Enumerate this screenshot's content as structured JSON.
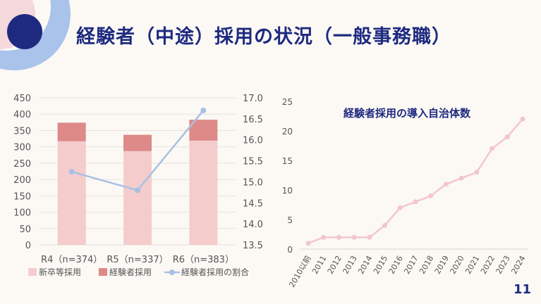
{
  "title": "経験者（中途）採用の状況（一般事務職）",
  "page_number": "11",
  "colors": {
    "navy": "#1e2a80",
    "light_pink": "#f4cccc",
    "dark_pink": "#dd8a88",
    "line_blue": "#a8c0e4",
    "line_pink": "#f3c6cc"
  },
  "chart_data": [
    {
      "type": "bar",
      "stacked": true,
      "categories": [
        "R4（n=374）",
        "R5（n=337）",
        "R6（n=383）"
      ],
      "series": [
        {
          "name": "新卒等採用",
          "values": [
            317,
            287,
            319
          ],
          "axis": "left"
        },
        {
          "name": "経験者採用",
          "values": [
            57,
            50,
            64
          ],
          "axis": "left"
        },
        {
          "name": "経験者採用の割合",
          "type": "line",
          "values": [
            15.24,
            14.8,
            16.7
          ],
          "axis": "right"
        }
      ],
      "ylim": [
        0,
        450
      ],
      "yticks": [
        "0",
        "50",
        "100",
        "150",
        "200",
        "250",
        "300",
        "350",
        "400",
        "450"
      ],
      "y2lim": [
        13.5,
        17.0
      ],
      "y2ticks": [
        "13.5",
        "14.0",
        "14.5",
        "15.0",
        "15.5",
        "16.0",
        "16.5",
        "17.0"
      ],
      "legend_position": "bottom",
      "grid": true
    },
    {
      "type": "line",
      "title": "経験者採用の導入自治体数",
      "categories": [
        "2010以前",
        "2011",
        "2012",
        "2013",
        "2014",
        "2015",
        "2016",
        "2017",
        "2018",
        "2019",
        "2020",
        "2021",
        "2022",
        "2023",
        "2024"
      ],
      "values": [
        1,
        2,
        2,
        2,
        2,
        4,
        7,
        8,
        9,
        11,
        12,
        13,
        17,
        19,
        22
      ],
      "ylim": [
        0,
        25
      ],
      "yticks": [
        "0",
        "5",
        "10",
        "15",
        "20",
        "25"
      ],
      "grid": false
    }
  ]
}
